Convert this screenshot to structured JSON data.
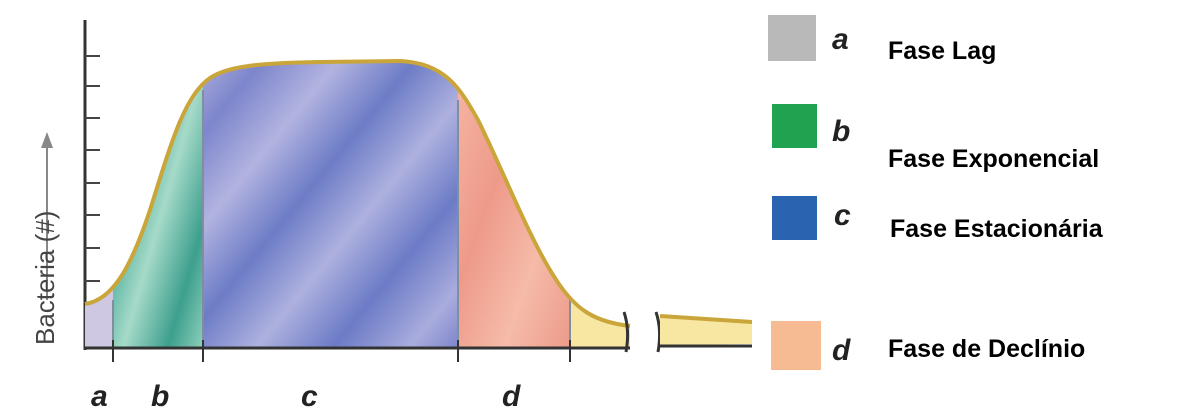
{
  "y_axis_label": "Bacteria (#)",
  "phase_letters": [
    "a",
    "b",
    "c",
    "d"
  ],
  "legend": [
    {
      "letter": "a",
      "label": "Fase Lag",
      "color": "#b9b9b9"
    },
    {
      "letter": "b",
      "label": "Fase Exponencial",
      "color": "#1fa350"
    },
    {
      "letter": "c",
      "label": "Fase Estacionária",
      "color": "#2a64b1"
    },
    {
      "letter": "d",
      "label": "Fase de Declínio",
      "color": "#f7bb93"
    }
  ],
  "colors": {
    "curve_outline": "#c9a53a",
    "lag_fill": "#cfc8e3",
    "exp_fill": "#5fb8a3",
    "stationary_fill": "#8a8fd0",
    "decline_fill": "#f0a595",
    "tail_fill": "#f7e7a3",
    "axis": "#333333"
  }
}
